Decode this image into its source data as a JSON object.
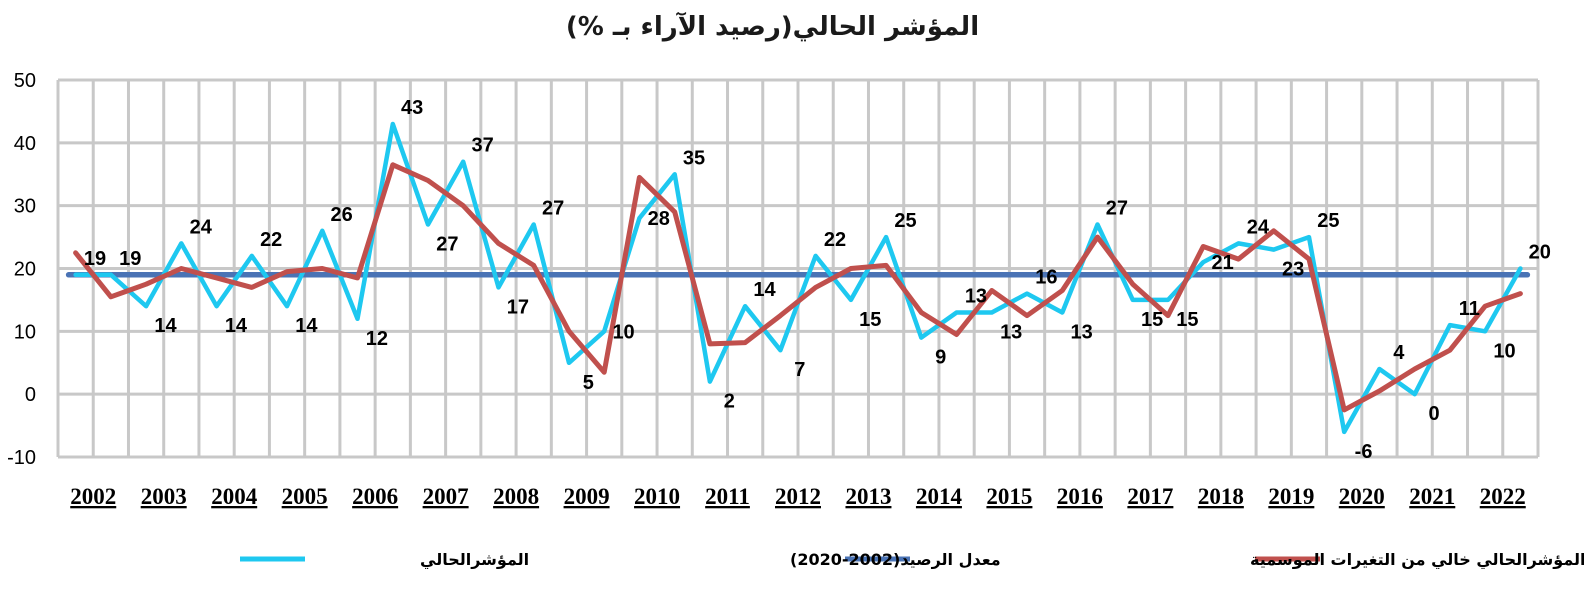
{
  "chart_data": {
    "type": "line",
    "title": "المؤشر الحالي(رصيد الآراء بـ %)",
    "ylim": [
      -10,
      50
    ],
    "yticks": [
      "50",
      "40",
      "30",
      "20",
      "10",
      "0",
      "-10"
    ],
    "grid": true,
    "legend_position": "bottom",
    "years": [
      "2002",
      "2003",
      "2004",
      "2005",
      "2006",
      "2007",
      "2008",
      "2009",
      "2010",
      "2011",
      "2012",
      "2013",
      "2014",
      "2015",
      "2016",
      "2017",
      "2018",
      "2019",
      "2020",
      "2021",
      "2022"
    ],
    "series": [
      {
        "name": "المؤشرالحالي",
        "color": "#1ec8f0",
        "values": [
          19,
          19,
          14,
          24,
          14,
          22,
          14,
          26,
          12,
          43,
          27,
          37,
          17,
          27,
          5,
          10,
          28,
          35,
          2,
          14,
          7,
          22,
          15,
          25,
          9,
          13,
          13,
          16,
          13,
          27,
          15,
          15,
          21,
          24,
          23,
          25,
          -6,
          4,
          0,
          11,
          10,
          20
        ],
        "labels": [
          "19",
          "19",
          "14",
          "24",
          "14",
          "22",
          "14",
          "26",
          "12",
          "43",
          "27",
          "37",
          "17",
          "27",
          "5",
          "10",
          "28",
          "35",
          "2",
          "14",
          "7",
          "22",
          "15",
          "25",
          "9",
          "13",
          "13",
          "16",
          "13",
          "27",
          "15",
          "15",
          "21",
          "24",
          "23",
          "25",
          "-6",
          "4",
          "0",
          "11",
          "10",
          "20"
        ]
      },
      {
        "name": "معدل الرصيد(2002-2020)",
        "color": "#4a73b5",
        "values": [
          19,
          19,
          19,
          19,
          19,
          19,
          19,
          19,
          19,
          19,
          19,
          19,
          19,
          19,
          19,
          19,
          19,
          19,
          19,
          19,
          19,
          19,
          19,
          19,
          19,
          19,
          19,
          19,
          19,
          19,
          19,
          19,
          19,
          19,
          19,
          19,
          19,
          19,
          19,
          19,
          19,
          19
        ]
      },
      {
        "name": "المؤشرالحالي خالي من التغيرات الموسمية",
        "color": "#c0504d",
        "values": [
          22.5,
          15.5,
          17.5,
          20,
          18.5,
          17,
          19.5,
          20,
          18.5,
          36.5,
          34,
          30,
          24,
          20.5,
          10,
          3.5,
          34.5,
          29,
          8,
          8.2,
          12.5,
          17,
          20,
          20.5,
          13,
          9.5,
          16.5,
          12.5,
          16.5,
          25,
          17.5,
          12.5,
          23.5,
          21.5,
          26,
          21.5,
          -2.5,
          0.5,
          4,
          7,
          14,
          16
        ]
      }
    ]
  }
}
